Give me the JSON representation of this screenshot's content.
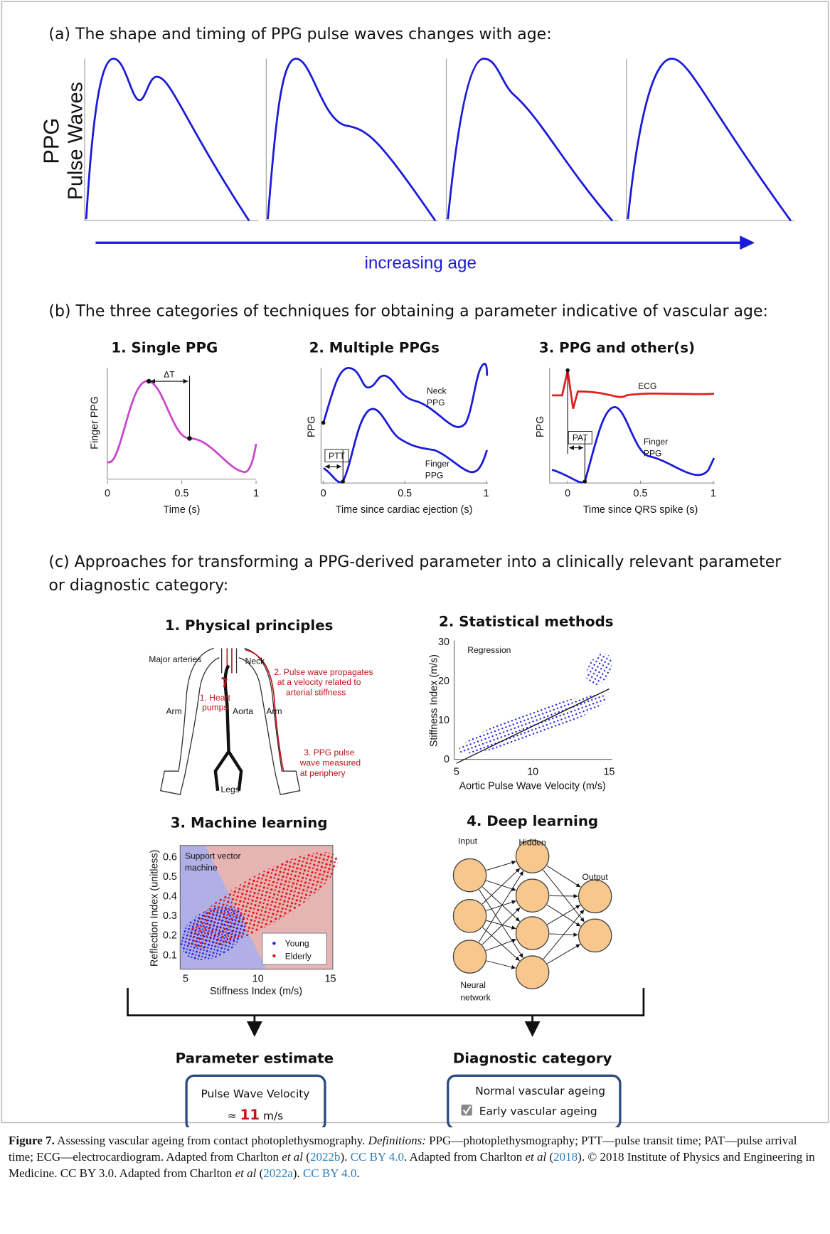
{
  "panel_a": {
    "title": "(a) The shape and timing of PPG pulse waves changes with age:",
    "y_label": [
      "PPG",
      "Pulse Waves"
    ],
    "x_label": "increasing age"
  },
  "panel_b": {
    "title": "(b) The three categories of techniques for obtaining a parameter indicative of vascular age:",
    "plots": [
      {
        "title": "1. Single PPG",
        "y_label": "Finger PPG",
        "x_label": "Time (s)",
        "xticks": [
          0,
          0.5,
          1
        ],
        "annotations": [
          "ΔT"
        ]
      },
      {
        "title": "2. Multiple PPGs",
        "y_label": "PPG",
        "x_label": "Time since cardiac ejection (s)",
        "xticks": [
          0,
          0.5,
          1
        ],
        "annotations": [
          "Neck",
          "PPG",
          "Finger",
          "PPG",
          "PTT"
        ]
      },
      {
        "title": "3. PPG and other(s)",
        "y_label": "PPG",
        "x_label": "Time since QRS spike (s)",
        "xticks": [
          0,
          0.5,
          1
        ],
        "annotations": [
          "ECG",
          "PAT",
          "Finger",
          "PPG"
        ]
      }
    ]
  },
  "panel_c": {
    "title": [
      "(c) Approaches for transforming a PPG-derived parameter into a clinically relevant parameter",
      "or diagnostic category:"
    ],
    "physical": {
      "title": "1. Physical principles",
      "labels": [
        "Major arteries",
        "Neck",
        "2. Pulse wave propagates",
        "at a velocity related to",
        "arterial stiffness",
        "1. Heart",
        "pumps",
        "Arm",
        "Aorta",
        "Arm",
        "3. PPG pulse",
        "wave measured",
        "at periphery",
        "Legs"
      ]
    },
    "statistical": {
      "title": "2. Statistical methods",
      "annotation": "Regression",
      "y_label": "Stiffness Index (m/s)",
      "x_label": "Aortic Pulse Wave Velocity (m/s)",
      "xticks": [
        5,
        10,
        15
      ],
      "yticks": [
        0,
        10,
        20,
        30
      ]
    },
    "machine": {
      "title": "3. Machine learning",
      "annotation": [
        "Support vector",
        "machine"
      ],
      "y_label": "Reflection Index (unitless)",
      "x_label": "Stiffness Index (m/s)",
      "xticks": [
        5,
        10,
        15
      ],
      "yticks": [
        0.1,
        0.2,
        0.3,
        0.4,
        0.5,
        0.6
      ],
      "legend": [
        "Young",
        "Elderly"
      ]
    },
    "deep": {
      "title": "4. Deep learning",
      "labels": [
        "Input",
        "Hidden",
        "Output",
        "Neural",
        "network"
      ]
    },
    "parameter": {
      "title": "Parameter estimate",
      "line": "Pulse Wave Velocity",
      "approx": "≈",
      "value": 11,
      "unit": "m/s"
    },
    "diagnostic": {
      "title": "Diagnostic category",
      "options": [
        "Normal vascular ageing",
        "Early vascular ageing"
      ]
    }
  },
  "caption": [
    {
      "text": "Figure 7.",
      "style": "bold"
    },
    {
      "text": " Assessing vascular ageing from contact photoplethysmography. "
    },
    {
      "text": "Definitions:",
      "style": "italic"
    },
    {
      "text": " PPG—photoplethysmography; PTT—pulse transit time; PAT—pulse arrival time; ECG—electrocardiogram. Adapted from Charlton "
    },
    {
      "text": "et al",
      "style": "italic"
    },
    {
      "text": " ("
    },
    {
      "text": "2022b",
      "style": "link"
    },
    {
      "text": "). "
    },
    {
      "text": "CC BY 4.0",
      "style": "link"
    },
    {
      "text": ". Adapted from Charlton "
    },
    {
      "text": "et al",
      "style": "italic"
    },
    {
      "text": " ("
    },
    {
      "text": "2018",
      "style": "link"
    },
    {
      "text": "). © 2018 Institute of Physics and Engineering in Medicine. CC BY 3.0. Adapted from Charlton "
    },
    {
      "text": "et al",
      "style": "italic"
    },
    {
      "text": " ("
    },
    {
      "text": "2022a",
      "style": "link"
    },
    {
      "text": "). "
    },
    {
      "text": "CC BY 4.0",
      "style": "link"
    },
    {
      "text": "."
    }
  ]
}
